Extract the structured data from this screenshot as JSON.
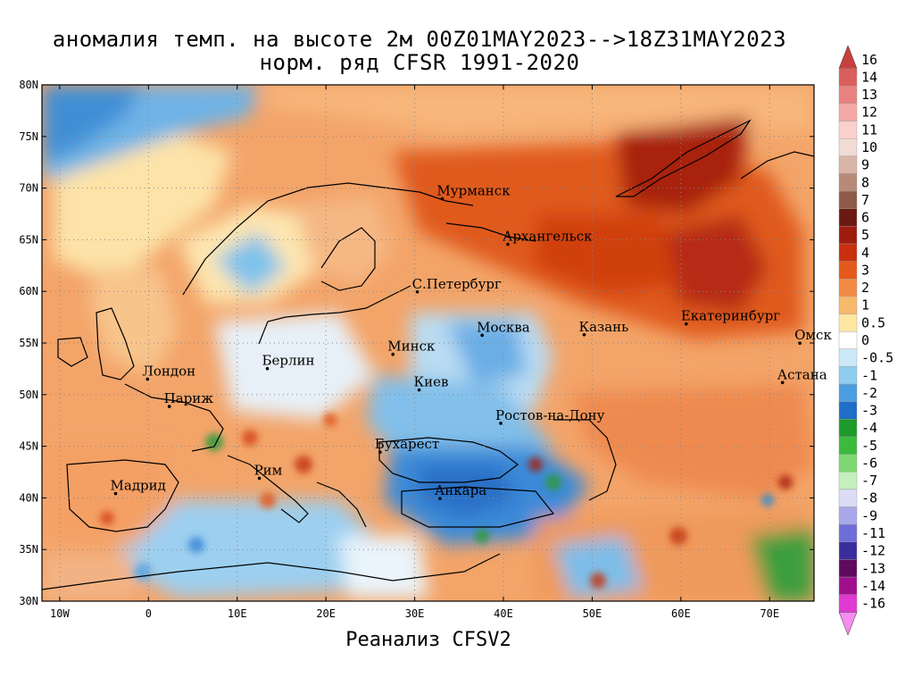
{
  "title": {
    "line1": "аномалия темп. на высоте 2м 00Z01MAY2023-->18Z31MAY2023",
    "line2": "норм. ряд CFSR 1991-2020"
  },
  "footer": "Реанализ CFSV2",
  "map": {
    "lon_range": [
      -12,
      75
    ],
    "lat_range": [
      30,
      80
    ],
    "lat_labels": [
      "80N",
      "75N",
      "70N",
      "65N",
      "60N",
      "55N",
      "50N",
      "45N",
      "40N",
      "35N",
      "30N"
    ],
    "lat_values": [
      80,
      75,
      70,
      65,
      60,
      55,
      50,
      45,
      40,
      35,
      30
    ],
    "lon_labels": [
      "10W",
      "0",
      "10E",
      "20E",
      "30E",
      "40E",
      "50E",
      "60E",
      "70E"
    ],
    "lon_values": [
      -10,
      0,
      10,
      20,
      30,
      40,
      50,
      60,
      70
    ],
    "cities": [
      {
        "name": "Мурманск",
        "lon": 33.1,
        "lat": 68.97
      },
      {
        "name": "Архангельск",
        "lon": 40.5,
        "lat": 64.55
      },
      {
        "name": "С.Петербург",
        "lon": 30.3,
        "lat": 59.95
      },
      {
        "name": "Москва",
        "lon": 37.6,
        "lat": 55.75
      },
      {
        "name": "Казань",
        "lon": 49.1,
        "lat": 55.8
      },
      {
        "name": "Екатеринбург",
        "lon": 60.6,
        "lat": 56.85
      },
      {
        "name": "Омск",
        "lon": 73.4,
        "lat": 54.98
      },
      {
        "name": "Астана",
        "lon": 71.45,
        "lat": 51.17
      },
      {
        "name": "Минск",
        "lon": 27.55,
        "lat": 53.9
      },
      {
        "name": "Берлин",
        "lon": 13.4,
        "lat": 52.52
      },
      {
        "name": "Лондон",
        "lon": -0.1,
        "lat": 51.5
      },
      {
        "name": "Париж",
        "lon": 2.35,
        "lat": 48.85
      },
      {
        "name": "Киев",
        "lon": 30.5,
        "lat": 50.45
      },
      {
        "name": "Ростов-на-Дону",
        "lon": 39.7,
        "lat": 47.23
      },
      {
        "name": "Бухарест",
        "lon": 26.1,
        "lat": 44.43
      },
      {
        "name": "Рим",
        "lon": 12.5,
        "lat": 41.9
      },
      {
        "name": "Мадрид",
        "lon": -3.7,
        "lat": 40.42
      },
      {
        "name": "Анкара",
        "lon": 32.85,
        "lat": 39.93
      }
    ]
  },
  "colorbar": {
    "labels": [
      "16",
      "14",
      "13",
      "12",
      "11",
      "10",
      "9",
      "8",
      "7",
      "6",
      "5",
      "4",
      "3",
      "2",
      "1",
      "0.5",
      "0",
      "-0.5",
      "-1",
      "-2",
      "-3",
      "-4",
      "-5",
      "-6",
      "-7",
      "-8",
      "-9",
      "-11",
      "-12",
      "-13",
      "-14",
      "-16"
    ],
    "colors": [
      "#c8403c",
      "#d9605c",
      "#e8827f",
      "#f4aaa6",
      "#fbd0cc",
      "#f0dcd4",
      "#d9b5a8",
      "#b98a78",
      "#8e5a4a",
      "#6b1a12",
      "#9e1c0e",
      "#c8300e",
      "#e55a1c",
      "#f28a45",
      "#f7b96c",
      "#fde7a3",
      "#ffffff",
      "#cbe8f7",
      "#8fcdf0",
      "#4b9ee0",
      "#1f6ec8",
      "#1c9a2a",
      "#3cba3c",
      "#7ed872",
      "#c5f0bc",
      "#dcdcf6",
      "#a8a8ea",
      "#6e6ed8",
      "#3a2e9e",
      "#5e0a5e",
      "#a0108e",
      "#e03ad2",
      "#f58cee"
    ]
  }
}
